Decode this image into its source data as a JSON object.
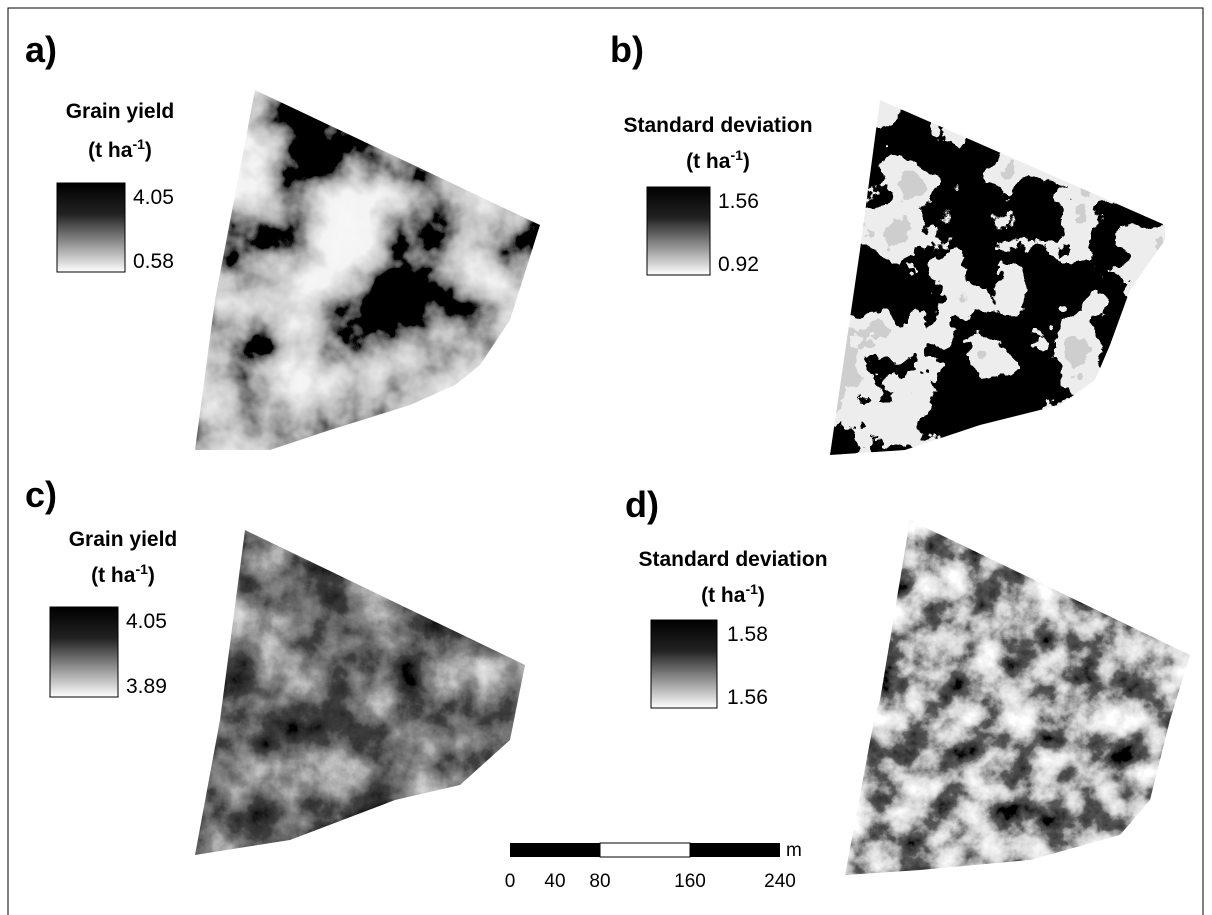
{
  "panels": [
    {
      "label": "a)",
      "legend": {
        "title": "Grain yield",
        "unit": {
          "open": "(t ha",
          "sup": "-1",
          "close": ")"
        },
        "max": 4.05,
        "min": 0.58
      }
    },
    {
      "label": "b)",
      "legend": {
        "title": "Standard deviation",
        "unit": {
          "open": "(t ha",
          "sup": "-1",
          "close": ")"
        },
        "max": 1.56,
        "min": 0.92
      }
    },
    {
      "label": "c)",
      "legend": {
        "title": "Grain yield",
        "unit": {
          "open": "(t ha",
          "sup": "-1",
          "close": ")"
        },
        "max": 4.05,
        "min": 3.89
      }
    },
    {
      "label": "d)",
      "legend": {
        "title": "Standard deviation",
        "unit": {
          "open": "(t ha",
          "sup": "-1",
          "close": ")"
        },
        "max": 1.58,
        "min": 1.56
      }
    }
  ],
  "scale_bar": {
    "ticks": [
      0,
      40,
      80,
      160,
      240
    ],
    "unit": "m"
  }
}
